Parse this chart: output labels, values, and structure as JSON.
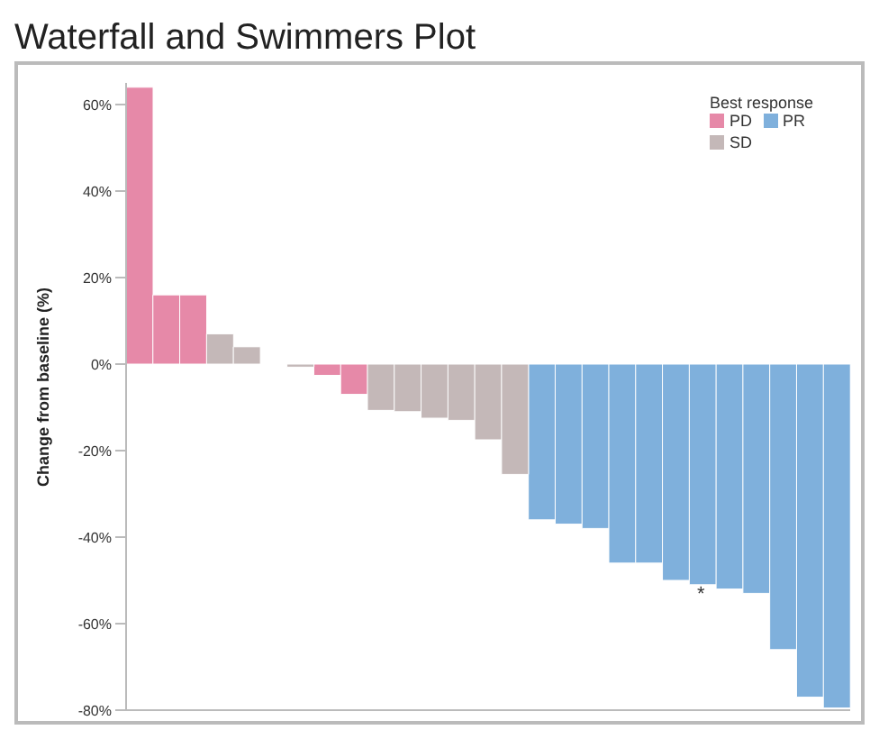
{
  "chart_data": {
    "type": "bar",
    "title": "Waterfall and Swimmers Plot",
    "ylabel": "Change from baseline (%)",
    "legend_title": "Best response",
    "categories": [
      null,
      null,
      null,
      null,
      null,
      null,
      null,
      null,
      null,
      null,
      null,
      null,
      null,
      null,
      null,
      null,
      null,
      null,
      null,
      null,
      null,
      null,
      null,
      null,
      null,
      null,
      null
    ],
    "series": [
      {
        "name": "PD",
        "color": "#e689a8",
        "values": [
          64,
          16,
          16,
          null,
          null,
          null,
          null,
          -2.6,
          -7,
          null,
          null,
          null,
          null,
          null,
          null,
          null,
          null,
          null,
          null,
          null,
          null,
          null,
          null,
          null,
          null,
          null,
          null
        ]
      },
      {
        "name": "PR",
        "color": "#7fb0dc",
        "values": [
          null,
          null,
          null,
          null,
          null,
          null,
          null,
          null,
          null,
          null,
          null,
          null,
          null,
          null,
          null,
          -36,
          -37,
          -38,
          -46,
          -46,
          -50,
          -51,
          -52,
          -53,
          -66,
          -77,
          -79.5
        ]
      },
      {
        "name": "SD",
        "color": "#c4b8b8",
        "values": [
          null,
          null,
          null,
          7,
          4,
          0,
          -0.7,
          null,
          null,
          -10.7,
          -11,
          -12.5,
          -13,
          -17.5,
          -25.5,
          null,
          null,
          null,
          null,
          null,
          null,
          null,
          null,
          null,
          null,
          null,
          null
        ]
      }
    ],
    "stacked": true,
    "ylim": [
      -80,
      65
    ],
    "yticks": [
      {
        "value": -80,
        "label": "-80%"
      },
      {
        "value": -60,
        "label": "-60%"
      },
      {
        "value": -40,
        "label": "-40%"
      },
      {
        "value": -20,
        "label": "-20%"
      },
      {
        "value": 0,
        "label": "0%"
      },
      {
        "value": 20,
        "label": "20%"
      },
      {
        "value": 40,
        "label": "40%"
      },
      {
        "value": 60,
        "label": "60%"
      }
    ],
    "tick_labels": "y",
    "legend": "top right",
    "annotations": [
      "*"
    ]
  }
}
